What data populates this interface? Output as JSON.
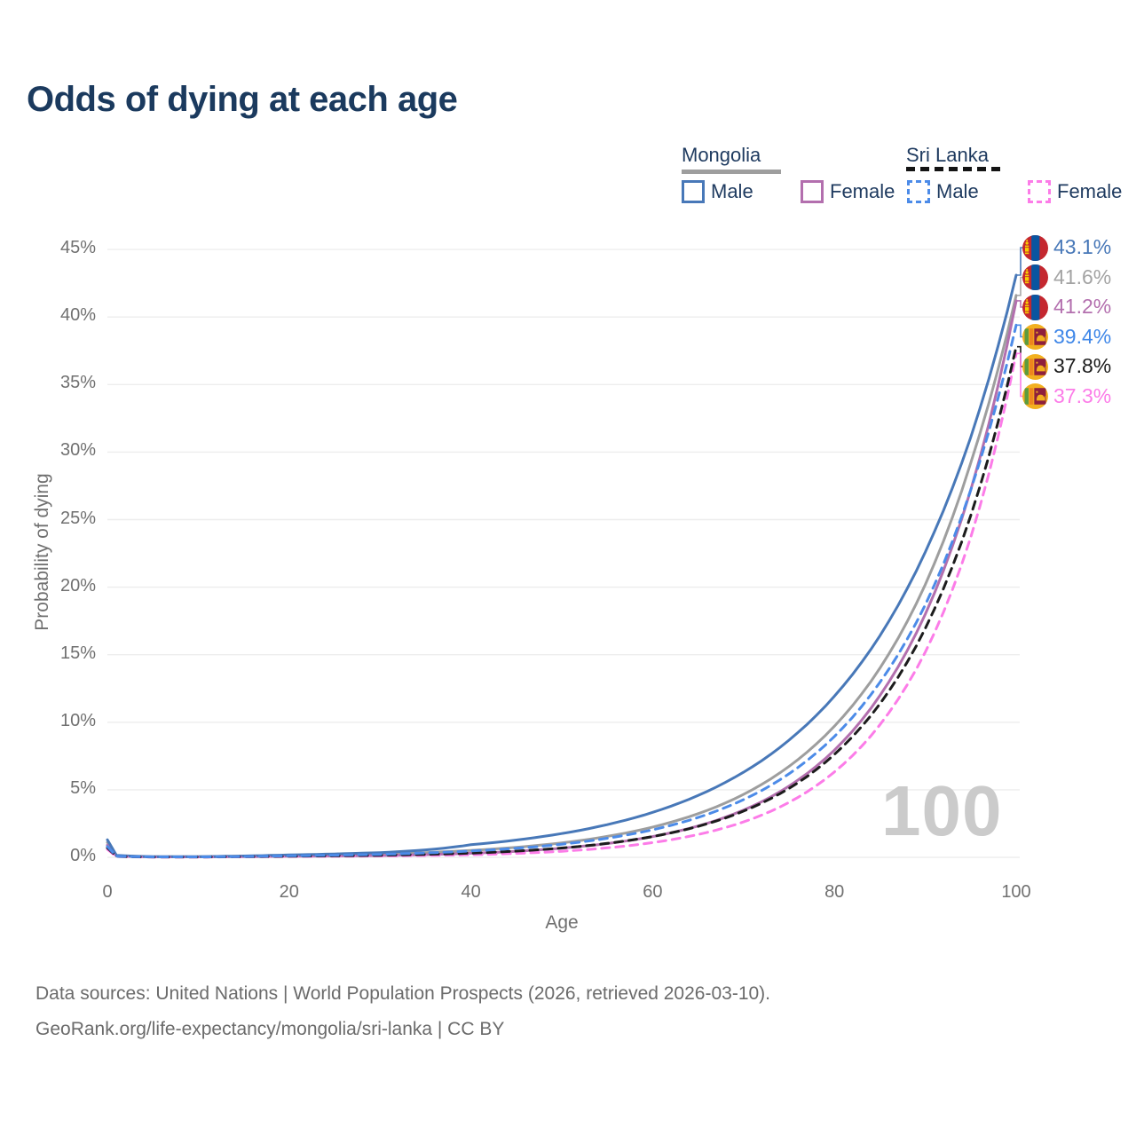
{
  "title": "Odds of dying at each age",
  "watermark": "100",
  "legend": {
    "groups": [
      {
        "label": "Mongolia",
        "line_style": "solid",
        "underline_color": "#9e9e9e",
        "items": [
          {
            "label": "Male",
            "color": "#4878b8"
          },
          {
            "label": "Female",
            "color": "#b36fae"
          }
        ]
      },
      {
        "label": "Sri Lanka",
        "line_style": "dashed",
        "underline_color": "#141414",
        "items": [
          {
            "label": "Male",
            "color": "#4c8be8"
          },
          {
            "label": "Female",
            "color": "#fc7ce8"
          }
        ]
      }
    ]
  },
  "footer": {
    "line1": "Data sources: United Nations | World Population Prospects (2026, retrieved 2026-03-10).",
    "line2": "GeoRank.org/life-expectancy/mongolia/sri-lanka | CC BY"
  },
  "chart_data": {
    "type": "line",
    "title": "Odds of dying at each age",
    "xlabel": "Age",
    "ylabel": "Probability of dying",
    "x_ticks": [
      0,
      20,
      40,
      60,
      80,
      100
    ],
    "y_ticks_percent": [
      0,
      5,
      10,
      15,
      20,
      25,
      30,
      35,
      40,
      45
    ],
    "xlim": [
      0,
      100
    ],
    "ylim_percent": [
      0,
      45
    ],
    "grid": "horizontal-light",
    "current_age_indicator": "100",
    "ages": [
      0,
      1,
      5,
      10,
      15,
      20,
      25,
      30,
      35,
      40,
      45,
      50,
      55,
      60,
      65,
      70,
      75,
      80,
      85,
      90,
      95,
      100
    ],
    "series": [
      {
        "id": "mongolia-male",
        "country": "Mongolia",
        "sex": "Male",
        "color": "#4878b8",
        "dash": false,
        "end_label": "43.1%",
        "label_color": "#4878b8",
        "values_percent": [
          1.3,
          0.15,
          0.05,
          0.05,
          0.1,
          0.18,
          0.25,
          0.35,
          0.55,
          0.93,
          1.28,
          1.76,
          2.42,
          3.33,
          4.58,
          6.3,
          8.67,
          11.93,
          16.4,
          22.6,
          31.1,
          43.1
        ]
      },
      {
        "id": "mongolia-both",
        "country": "Mongolia",
        "sex": "Both sexes",
        "color": "#9e9e9e",
        "dash": false,
        "end_label": "41.6%",
        "label_color": "#a3a3a3",
        "values_percent": [
          1.1,
          0.12,
          0.04,
          0.04,
          0.07,
          0.12,
          0.17,
          0.23,
          0.35,
          0.51,
          0.74,
          1.07,
          1.55,
          2.24,
          3.23,
          4.66,
          6.73,
          9.71,
          14.0,
          20.2,
          29.2,
          41.6
        ]
      },
      {
        "id": "mongolia-female",
        "country": "Mongolia",
        "sex": "Female",
        "color": "#b36fae",
        "dash": false,
        "end_label": "41.2%",
        "label_color": "#b36fae",
        "values_percent": [
          0.9,
          0.1,
          0.03,
          0.03,
          0.05,
          0.08,
          0.1,
          0.13,
          0.2,
          0.3,
          0.45,
          0.68,
          1.02,
          1.54,
          2.32,
          3.5,
          5.27,
          7.94,
          11.97,
          18.0,
          27.2,
          41.2
        ]
      },
      {
        "id": "sri-lanka-male",
        "country": "Sri Lanka",
        "sex": "Male",
        "color": "#4c8be8",
        "dash": true,
        "end_label": "39.4%",
        "label_color": "#3f87e8",
        "values_percent": [
          0.8,
          0.08,
          0.03,
          0.03,
          0.06,
          0.11,
          0.16,
          0.22,
          0.32,
          0.47,
          0.67,
          0.97,
          1.41,
          2.04,
          2.95,
          4.27,
          6.18,
          8.95,
          12.95,
          18.7,
          27.2,
          39.4
        ]
      },
      {
        "id": "sri-lanka-both",
        "country": "Sri Lanka",
        "sex": "Both sexes",
        "color": "#1c1c1c",
        "dash": true,
        "end_label": "37.8%",
        "label_color": "#1c1c1c",
        "values_percent": [
          0.7,
          0.07,
          0.025,
          0.025,
          0.05,
          0.08,
          0.11,
          0.15,
          0.22,
          0.31,
          0.46,
          0.69,
          1.03,
          1.54,
          2.29,
          3.42,
          5.1,
          7.62,
          11.36,
          16.95,
          25.3,
          37.8
        ]
      },
      {
        "id": "sri-lanka-female",
        "country": "Sri Lanka",
        "sex": "Female",
        "color": "#fc7ce8",
        "dash": true,
        "end_label": "37.3%",
        "label_color": "#fc7ce8",
        "values_percent": [
          0.6,
          0.06,
          0.02,
          0.02,
          0.04,
          0.06,
          0.08,
          0.1,
          0.14,
          0.19,
          0.29,
          0.45,
          0.7,
          1.09,
          1.69,
          2.62,
          4.07,
          6.32,
          9.81,
          15.2,
          23.7,
          37.3
        ]
      }
    ]
  }
}
